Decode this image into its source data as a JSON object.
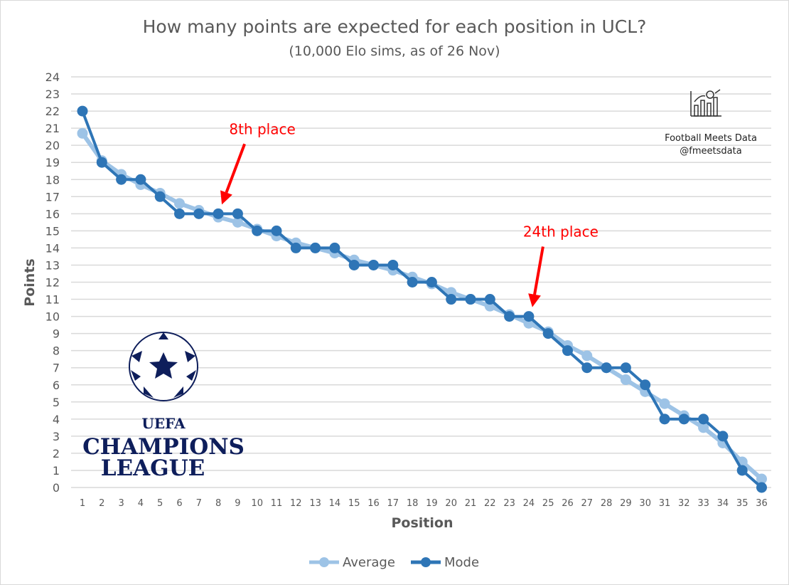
{
  "chart_data": {
    "type": "line",
    "title": "How many points are expected for each position in UCL?",
    "subtitle": "(10,000 Elo sims, as of 26 Nov)",
    "xlabel": "Position",
    "ylabel": "Points",
    "ylim": [
      0,
      24
    ],
    "yticks": [
      "0",
      "1",
      "2",
      "3",
      "4",
      "5",
      "6",
      "7",
      "8",
      "9",
      "10",
      "11",
      "12",
      "13",
      "14",
      "15",
      "16",
      "17",
      "18",
      "19",
      "20",
      "21",
      "22",
      "23",
      "24"
    ],
    "x": [
      1,
      2,
      3,
      4,
      5,
      6,
      7,
      8,
      9,
      10,
      11,
      12,
      13,
      14,
      15,
      16,
      17,
      18,
      19,
      20,
      21,
      22,
      23,
      24,
      25,
      26,
      27,
      28,
      29,
      30,
      31,
      32,
      33,
      34,
      35,
      36
    ],
    "grid": "horizontal",
    "legend_position": "bottom",
    "series": [
      {
        "name": "Average",
        "color": "#9dc3e6",
        "values": [
          20.7,
          19.1,
          18.3,
          17.7,
          17.2,
          16.6,
          16.2,
          15.8,
          15.5,
          15.1,
          14.7,
          14.3,
          14.0,
          13.7,
          13.3,
          13.0,
          12.7,
          12.3,
          11.9,
          11.4,
          11.0,
          10.6,
          10.1,
          9.6,
          9.1,
          8.3,
          7.7,
          7.0,
          6.3,
          5.6,
          4.9,
          4.2,
          3.5,
          2.6,
          1.5,
          0.5
        ]
      },
      {
        "name": "Mode",
        "color": "#2e75b6",
        "values": [
          22,
          19,
          18,
          18,
          17,
          16,
          16,
          16,
          16,
          15,
          15,
          14,
          14,
          14,
          13,
          13,
          13,
          12,
          12,
          11,
          11,
          11,
          10,
          10,
          9,
          8,
          7,
          7,
          7,
          6,
          4,
          4,
          4,
          3,
          1,
          0
        ]
      }
    ],
    "annotations": [
      {
        "text": "8th place",
        "position": 8,
        "value": 16,
        "color": "#ff0000"
      },
      {
        "text": "24th place",
        "position": 24,
        "value": 10,
        "color": "#ff0000"
      }
    ]
  },
  "branding": {
    "name": "Football Meets Data",
    "handle": "@fmeetsdata"
  },
  "logo": {
    "uefa": "UEFA",
    "line1": "CHAMPIONS",
    "line2": "LEAGUE"
  }
}
